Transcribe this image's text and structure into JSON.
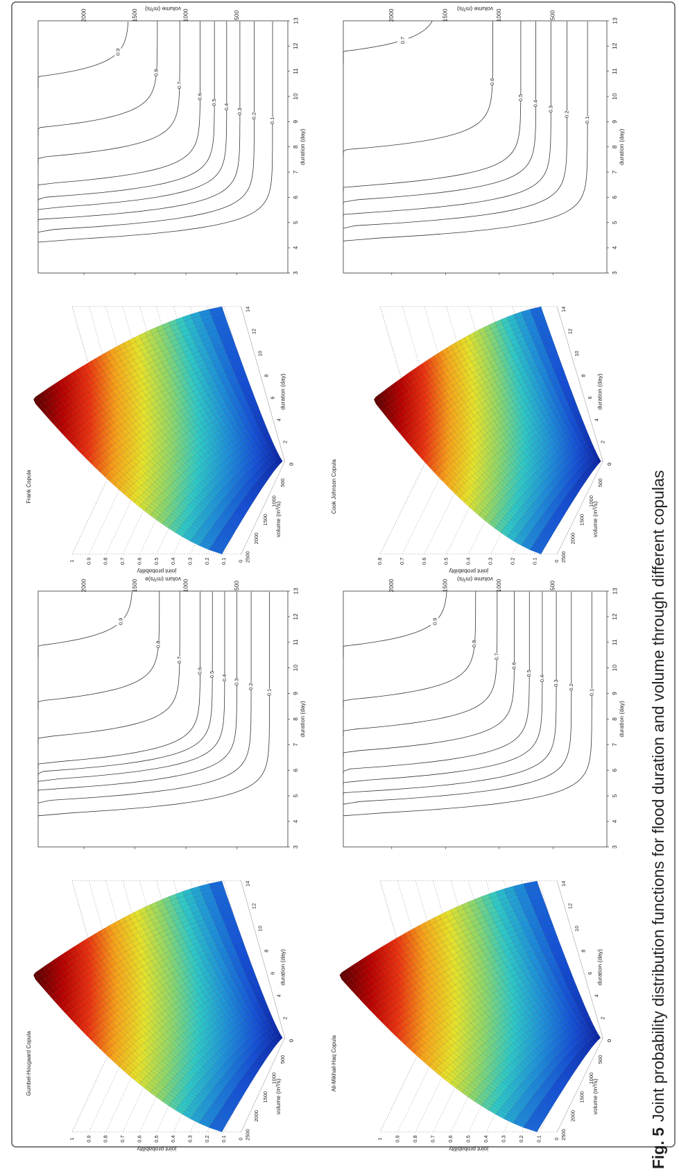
{
  "figure": {
    "label": "Fig. 5",
    "caption": "Joint probability distribution functions for flood duration and volume through different copulas"
  },
  "colors": {
    "frame": "#555555",
    "contour_line": "#333333",
    "surface_colormap": [
      "#5a0000",
      "#b40000",
      "#e83010",
      "#f6a21a",
      "#e6e22a",
      "#8fd66a",
      "#2ec7c7",
      "#1e8fd8",
      "#1550d6",
      "#0a1a96"
    ]
  },
  "chart_data": [
    {
      "type": "surface",
      "title": "Gumbel-Hougaard Copula",
      "xlabel": "duration (day)",
      "ylabel": "volume (m³/s)",
      "zlabel": "joint probability",
      "x_ticks": [
        "0",
        "2",
        "4",
        "6",
        "8",
        "10",
        "12",
        "14"
      ],
      "y_ticks": [
        "2500",
        "2000",
        "1500",
        "1000",
        "500",
        "0"
      ],
      "z_ticks": [
        "0",
        "0.1",
        "0.2",
        "0.3",
        "0.4",
        "0.5",
        "0.6",
        "0.7",
        "0.8",
        "0.9",
        "1"
      ],
      "xlim": [
        0,
        14
      ],
      "ylim": [
        0,
        2500
      ],
      "zlim": [
        0,
        1
      ],
      "zmax": 1.0,
      "grid": true
    },
    {
      "type": "contour",
      "xlabel": "duration (day)",
      "ylabel": "volum (m³/s)e",
      "x_ticks": [
        "3",
        "4",
        "5",
        "6",
        "7",
        "8",
        "9",
        "10",
        "11",
        "12",
        "13"
      ],
      "y_ticks": [
        "500",
        "1000",
        "1500",
        "2000"
      ],
      "xlim": [
        3,
        13
      ],
      "ylim": [
        0,
        2450
      ],
      "levels": [
        0.1,
        0.2,
        0.3,
        0.4,
        0.5,
        0.6,
        0.7,
        0.8,
        0.9
      ],
      "level_labels": [
        "0.1",
        "0.2",
        "0.3",
        "0.4",
        "0.5",
        "0.6",
        "0.7",
        "0.8",
        "0.9"
      ],
      "contours": [
        {
          "level": "0.1",
          "a": 4.2,
          "b": 180
        },
        {
          "level": "0.2",
          "a": 4.7,
          "b": 360
        },
        {
          "level": "0.3",
          "a": 5.1,
          "b": 500
        },
        {
          "level": "0.4",
          "a": 5.45,
          "b": 620
        },
        {
          "level": "0.5",
          "a": 5.75,
          "b": 740
        },
        {
          "level": "0.6",
          "a": 6.05,
          "b": 860
        },
        {
          "level": "0.7",
          "a": 7.0,
          "b": 1060
        },
        {
          "level": "0.8",
          "a": 8.35,
          "b": 1260
        },
        {
          "level": "0.9",
          "a": 10.4,
          "b": 1520
        }
      ]
    },
    {
      "type": "surface",
      "title": "Frank Copula",
      "xlabel": "duration (day)",
      "ylabel": "volume (m³/s)",
      "zlabel": "joint probability",
      "x_ticks": [
        "0",
        "2",
        "4",
        "6",
        "8",
        "10",
        "12",
        "14"
      ],
      "y_ticks": [
        "2500",
        "2000",
        "1500",
        "1000",
        "500",
        "0"
      ],
      "z_ticks": [
        "0",
        "0.1",
        "0.2",
        "0.3",
        "0.4",
        "0.5",
        "0.6",
        "0.7",
        "0.8",
        "0.9",
        "1"
      ],
      "xlim": [
        0,
        14
      ],
      "ylim": [
        0,
        2500
      ],
      "zlim": [
        0,
        1
      ],
      "zmax": 1.0,
      "grid": true
    },
    {
      "type": "contour",
      "xlabel": "duration (day)",
      "ylabel": "volume (m³/s)",
      "x_ticks": [
        "3",
        "4",
        "5",
        "6",
        "7",
        "8",
        "9",
        "10",
        "11",
        "12",
        "13"
      ],
      "y_ticks": [
        "500",
        "1000",
        "1500",
        "2000"
      ],
      "xlim": [
        3,
        13
      ],
      "ylim": [
        0,
        2450
      ],
      "levels": [
        0.1,
        0.2,
        0.3,
        0.4,
        0.5,
        0.6,
        0.7,
        0.8,
        0.9
      ],
      "level_labels": [
        "0.1",
        "0.2",
        "0.3",
        "0.4",
        "0.5",
        "0.6",
        "0.7",
        "0.8",
        "0.9"
      ],
      "contours": [
        {
          "level": "0.1",
          "a": 4.2,
          "b": 150
        },
        {
          "level": "0.2",
          "a": 4.6,
          "b": 330
        },
        {
          "level": "0.3",
          "a": 5.0,
          "b": 470
        },
        {
          "level": "0.4",
          "a": 5.4,
          "b": 600
        },
        {
          "level": "0.5",
          "a": 5.8,
          "b": 720
        },
        {
          "level": "0.6",
          "a": 6.3,
          "b": 860
        },
        {
          "level": "0.7",
          "a": 7.3,
          "b": 1060
        },
        {
          "level": "0.8",
          "a": 8.4,
          "b": 1280
        },
        {
          "level": "0.9",
          "a": 10.3,
          "b": 1560
        }
      ]
    },
    {
      "type": "surface",
      "title": "Ali-Mikhail-Haq Copula",
      "xlabel": "duration (day)",
      "ylabel": "volume (m³/s)",
      "zlabel": "joint probability",
      "x_ticks": [
        "0",
        "2",
        "4",
        "6",
        "8",
        "10",
        "12",
        "14"
      ],
      "y_ticks": [
        "2500",
        "2000",
        "1500",
        "1000",
        "500",
        "0"
      ],
      "z_ticks": [
        "0",
        "0.1",
        "0.2",
        "0.3",
        "0.4",
        "0.5",
        "0.6",
        "0.7",
        "0.8",
        "0.9",
        "1"
      ],
      "xlim": [
        0,
        14
      ],
      "ylim": [
        0,
        2500
      ],
      "zlim": [
        0,
        1
      ],
      "zmax": 1.0,
      "grid": true
    },
    {
      "type": "contour",
      "xlabel": "duration (day)",
      "ylabel": "volume (m³/s)",
      "x_ticks": [
        "3",
        "4",
        "5",
        "6",
        "7",
        "8",
        "9",
        "10",
        "11",
        "12",
        "13"
      ],
      "y_ticks": [
        "500",
        "1000",
        "1500",
        "2000"
      ],
      "xlim": [
        3,
        13
      ],
      "ylim": [
        0,
        2450
      ],
      "levels": [
        0.1,
        0.2,
        0.3,
        0.4,
        0.5,
        0.6,
        0.7,
        0.8,
        0.9
      ],
      "level_labels": [
        "0.1",
        "0.2",
        "0.3",
        "0.4",
        "0.5",
        "0.6",
        "0.7",
        "0.8",
        "0.9"
      ],
      "contours": [
        {
          "level": "0.1",
          "a": 4.2,
          "b": 140
        },
        {
          "level": "0.2",
          "a": 4.65,
          "b": 330
        },
        {
          "level": "0.3",
          "a": 5.0,
          "b": 470
        },
        {
          "level": "0.4",
          "a": 5.4,
          "b": 600
        },
        {
          "level": "0.5",
          "a": 5.85,
          "b": 720
        },
        {
          "level": "0.6",
          "a": 6.5,
          "b": 860
        },
        {
          "level": "0.7",
          "a": 7.3,
          "b": 1020
        },
        {
          "level": "0.8",
          "a": 8.4,
          "b": 1220
        },
        {
          "level": "0.9",
          "a": 10.4,
          "b": 1480
        }
      ]
    },
    {
      "type": "surface",
      "title": "Cook Johnson Copula",
      "xlabel": "duration (day)",
      "ylabel": "volume (m³/s)",
      "zlabel": "joint probability",
      "x_ticks": [
        "0",
        "2",
        "4",
        "6",
        "8",
        "10",
        "12",
        "14"
      ],
      "y_ticks": [
        "2500",
        "2000",
        "1500",
        "1000",
        "500",
        "0"
      ],
      "z_ticks": [
        "0",
        "0.1",
        "0.2",
        "0.3",
        "0.4",
        "0.5",
        "0.6",
        "0.7",
        "0.8"
      ],
      "xlim": [
        0,
        14
      ],
      "ylim": [
        0,
        2500
      ],
      "zlim": [
        0,
        0.8
      ],
      "zmax": 0.8,
      "grid": true
    },
    {
      "type": "contour",
      "xlabel": "duration (day)",
      "ylabel": "volume (m³/s)",
      "x_ticks": [
        "3",
        "4",
        "5",
        "6",
        "7",
        "8",
        "9",
        "10",
        "11",
        "12",
        "13"
      ],
      "y_ticks": [
        "500",
        "1000",
        "1500",
        "2000"
      ],
      "xlim": [
        3,
        13
      ],
      "ylim": [
        0,
        2450
      ],
      "levels": [
        0.1,
        0.2,
        0.3,
        0.4,
        0.5,
        0.6,
        0.7
      ],
      "level_labels": [
        "0.1",
        "0.2",
        "0.3",
        "0.4",
        "0.5",
        "0.6",
        "0.7"
      ],
      "contours": [
        {
          "level": "0.1",
          "a": 4.25,
          "b": 180
        },
        {
          "level": "0.2",
          "a": 4.75,
          "b": 370
        },
        {
          "level": "0.3",
          "a": 5.2,
          "b": 520
        },
        {
          "level": "0.4",
          "a": 5.7,
          "b": 660
        },
        {
          "level": "0.5",
          "a": 6.2,
          "b": 800
        },
        {
          "level": "0.6",
          "a": 7.6,
          "b": 1060
        },
        {
          "level": "0.7",
          "a": 11.3,
          "b": 1560
        }
      ]
    }
  ]
}
